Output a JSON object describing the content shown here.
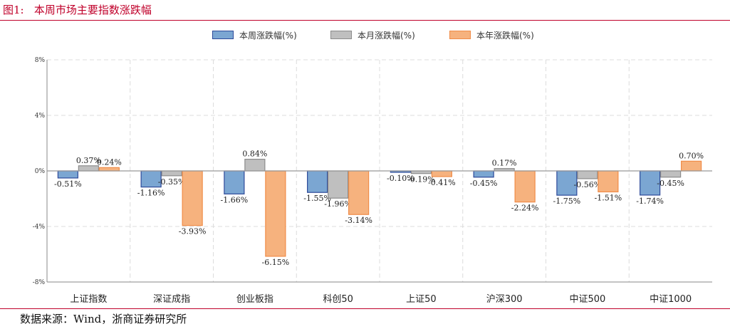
{
  "figure_title": "图1:   本周市场主要指数涨跌幅",
  "source": "数据来源：Wind，浙商证券研究所",
  "colors": {
    "title_red": "#c0002a",
    "weekly_fill": "#7ba6d2",
    "weekly_stroke": "#2e4a9a",
    "monthly_fill": "#bfbfbf",
    "monthly_stroke": "#8c8c8c",
    "yearly_fill": "#f6b27e",
    "yearly_stroke": "#f08c48"
  },
  "chart_data": {
    "type": "bar",
    "title": "",
    "xlabel": "",
    "ylabel": "",
    "ylim": [
      -8,
      8
    ],
    "yticks": [
      "8%",
      "4%",
      "0%",
      "-4%",
      "-8%"
    ],
    "grid": true,
    "legend_position": "top",
    "categories": [
      "上证指数",
      "深证成指",
      "创业板指",
      "科创50",
      "上证50",
      "沪深300",
      "中证500",
      "中证1000"
    ],
    "series": [
      {
        "name": "本周涨跌幅(%)",
        "values": [
          -0.51,
          -1.16,
          -1.66,
          -1.55,
          -0.1,
          -0.45,
          -1.75,
          -1.74
        ],
        "labels": [
          "-0.51%",
          "-1.16%",
          "-1.66%",
          "-1.55%",
          "-0.10%",
          "-0.45%",
          "-1.75%",
          "-1.74%"
        ]
      },
      {
        "name": "本月涨跌幅(%)",
        "values": [
          0.37,
          -0.35,
          0.84,
          -1.96,
          -0.19,
          0.17,
          -0.56,
          -0.45
        ],
        "labels": [
          "0.37%",
          "-0.35%",
          "0.84%",
          "-1.96%",
          "-0.19%",
          "0.17%",
          "-0.56%",
          "-0.45%"
        ]
      },
      {
        "name": "本年涨跌幅(%)",
        "values": [
          0.24,
          -3.93,
          -6.15,
          -3.14,
          -0.41,
          -2.24,
          -1.51,
          0.7
        ],
        "labels": [
          "0.24%",
          "-3.93%",
          "-6.15%",
          "-3.14%",
          "-0.41%",
          "-2.24%",
          "-1.51%",
          "0.70%"
        ]
      }
    ]
  }
}
